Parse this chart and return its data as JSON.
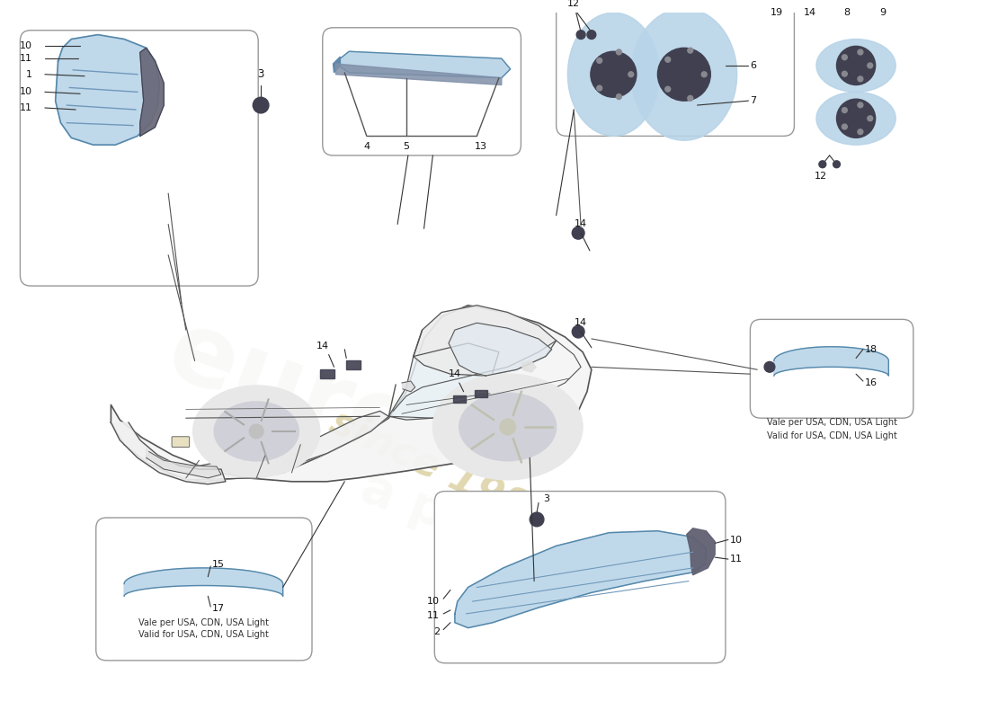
{
  "bg_color": "#ffffff",
  "box_edge_color": "#999999",
  "light_fill": "#b8d4e8",
  "light_edge": "#5588aa",
  "dark_fill": "#404050",
  "gray_fill": "#c0c0c8",
  "car_line": "#555555",
  "car_fill": "#f8f8f8",
  "label_color": "#111111",
  "watermark_text_color": "#c8b870",
  "watermark_brand_color": "#d8d8cc",
  "validity_lines": [
    "Vale per USA, CDN, USA Light",
    "Valid for USA, CDN, USA Light"
  ]
}
